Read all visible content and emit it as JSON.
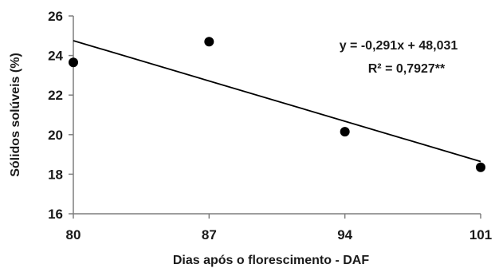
{
  "chart_data": {
    "type": "scatter",
    "xlabel": "Dias após o florescimento - DAF",
    "ylabel": "Sólidos solúveis (%)",
    "x_ticks": [
      "80",
      "87",
      "94",
      "101"
    ],
    "y_ticks": [
      "16",
      "18",
      "20",
      "22",
      "24",
      "26"
    ],
    "xlim": [
      80,
      101
    ],
    "ylim": [
      16,
      26
    ],
    "points": [
      {
        "x": 80,
        "y": 23.65
      },
      {
        "x": 87,
        "y": 24.7
      },
      {
        "x": 94,
        "y": 20.15
      },
      {
        "x": 101,
        "y": 18.35
      }
    ],
    "trendline": {
      "slope": -0.291,
      "intercept": 48.031
    },
    "annotations": {
      "equation": "y = -0,291x + 48,031",
      "r2": "R² = 0,7927**"
    },
    "grid": false,
    "colors": {
      "points": "#000000",
      "line": "#000000",
      "axis": "#7f7f7f"
    }
  }
}
